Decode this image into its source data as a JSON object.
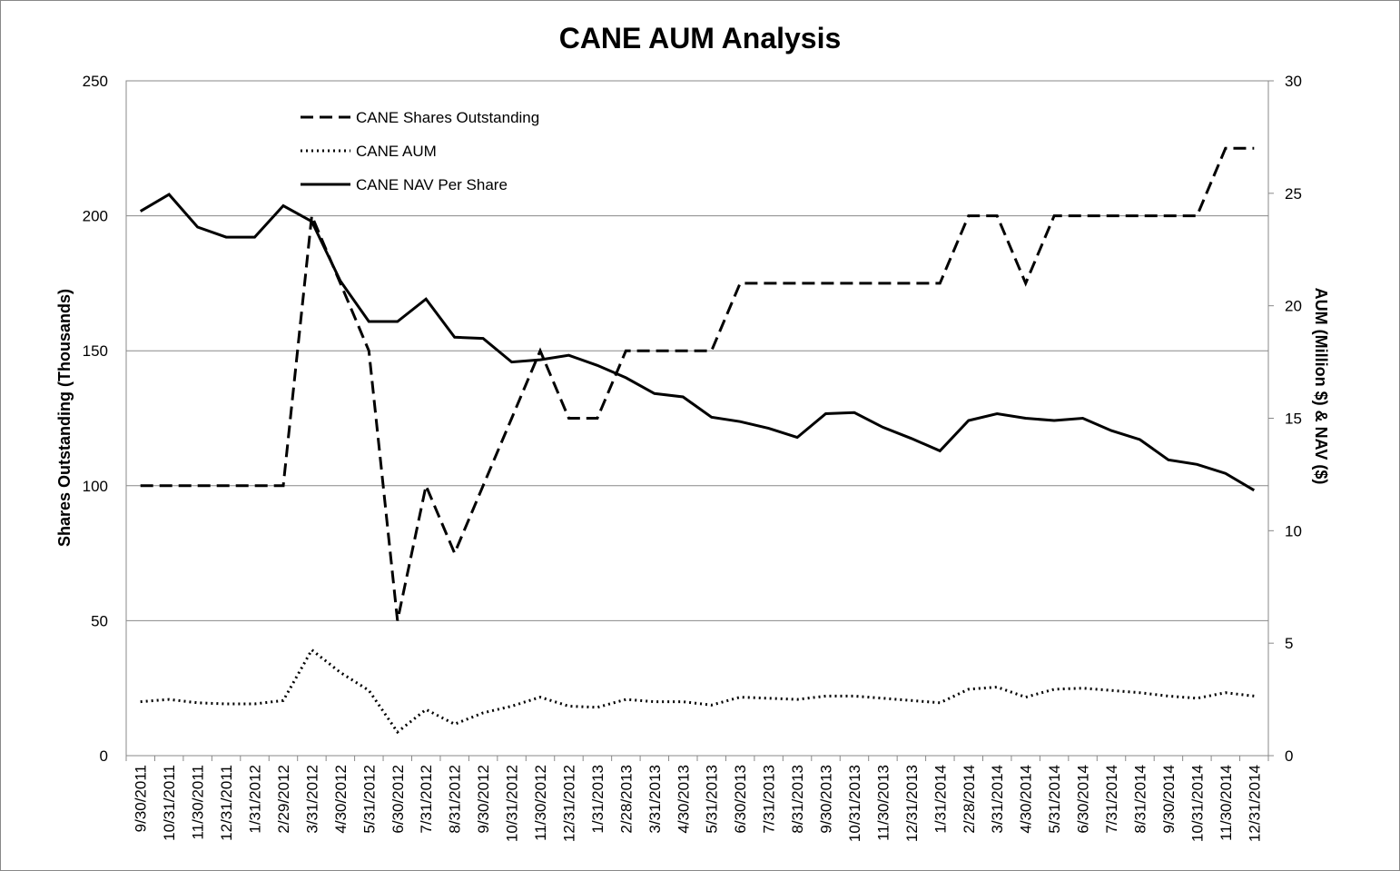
{
  "chart_data": {
    "type": "line",
    "title": "CANE AUM Analysis",
    "ylabel": "Shares Outstanding (Thousands)",
    "y2label": "AUM (Million $) & NAV ($)",
    "ylim": [
      0,
      250
    ],
    "y2lim": [
      0,
      30
    ],
    "yticks": [
      "0",
      "50",
      "100",
      "150",
      "200",
      "250"
    ],
    "y2ticks": [
      "0",
      "5",
      "10",
      "15",
      "20",
      "25",
      "30"
    ],
    "grid": "horizontal",
    "legend_position": "top-left",
    "x": [
      "9/30/2011",
      "10/31/2011",
      "11/30/2011",
      "12/31/2011",
      "1/31/2012",
      "2/29/2012",
      "3/31/2012",
      "4/30/2012",
      "5/31/2012",
      "6/30/2012",
      "7/31/2012",
      "8/31/2012",
      "9/30/2012",
      "10/31/2012",
      "11/30/2012",
      "12/31/2012",
      "1/31/2013",
      "2/28/2013",
      "3/31/2013",
      "4/30/2013",
      "5/31/2013",
      "6/30/2013",
      "7/31/2013",
      "8/31/2013",
      "9/30/2013",
      "10/31/2013",
      "11/30/2013",
      "12/31/2013",
      "1/31/2014",
      "2/28/2014",
      "3/31/2014",
      "4/30/2014",
      "5/31/2014",
      "6/30/2014",
      "7/31/2014",
      "8/31/2014",
      "9/30/2014",
      "10/31/2014",
      "11/30/2014",
      "12/31/2014"
    ],
    "series": [
      {
        "name": "CANE Shares Outstanding",
        "axis": "left",
        "style": "dashed",
        "values": [
          100,
          100,
          100,
          100,
          100,
          100,
          200,
          175,
          150,
          50,
          100,
          75,
          100,
          125,
          150,
          125,
          125,
          150,
          150,
          150,
          150,
          175,
          175,
          175,
          175,
          175,
          175,
          175,
          175,
          200,
          200,
          175,
          200,
          200,
          200,
          200,
          200,
          200,
          225,
          225
        ]
      },
      {
        "name": "CANE AUM",
        "axis": "right",
        "style": "dotted",
        "values": [
          2.4,
          2.5,
          2.35,
          2.3,
          2.3,
          2.45,
          4.7,
          3.7,
          2.9,
          1.05,
          2.05,
          1.4,
          1.9,
          2.2,
          2.6,
          2.2,
          2.15,
          2.5,
          2.4,
          2.4,
          2.25,
          2.6,
          2.55,
          2.5,
          2.65,
          2.65,
          2.55,
          2.45,
          2.35,
          2.95,
          3.05,
          2.6,
          2.95,
          3.0,
          2.9,
          2.8,
          2.65,
          2.55,
          2.8,
          2.65
        ]
      },
      {
        "name": "CANE NAV Per Share",
        "axis": "right",
        "style": "solid",
        "values": [
          24.2,
          24.95,
          23.5,
          23.05,
          23.05,
          24.45,
          23.75,
          21.1,
          19.3,
          19.3,
          20.3,
          18.6,
          18.55,
          17.5,
          17.6,
          17.8,
          17.35,
          16.8,
          16.1,
          15.95,
          15.05,
          14.85,
          14.55,
          14.15,
          15.2,
          15.25,
          14.6,
          14.1,
          13.55,
          14.9,
          15.2,
          15.0,
          14.9,
          15.0,
          14.45,
          14.05,
          13.15,
          12.95,
          12.55,
          11.8
        ]
      }
    ]
  }
}
